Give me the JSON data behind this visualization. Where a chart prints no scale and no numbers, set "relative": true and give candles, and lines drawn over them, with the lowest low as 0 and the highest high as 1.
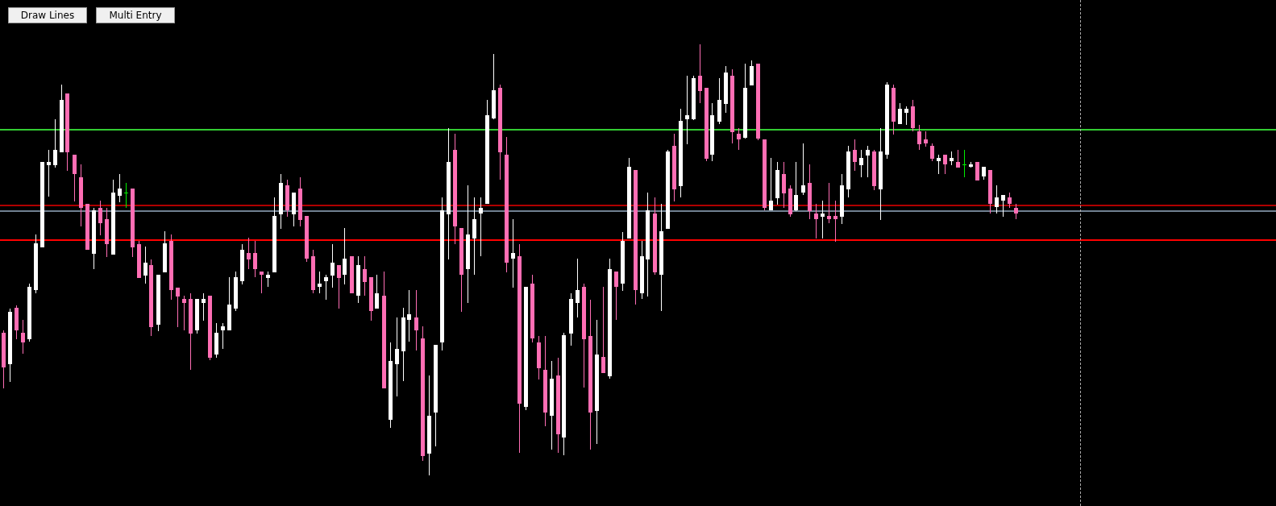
{
  "chart_data": {
    "type": "candlestick",
    "relative": true,
    "tick_labels": false,
    "annotations": [
      "Draw Lines",
      "Multi Entry"
    ],
    "ref_lines": [
      {
        "axis": "y",
        "value": 0.802,
        "color": "#33cc33"
      },
      {
        "axis": "y",
        "value": 0.626,
        "color": "#b00000"
      },
      {
        "axis": "y",
        "value": 0.613,
        "color": "#708090"
      },
      {
        "axis": "y",
        "value": 0.546,
        "color": "#ff0000"
      }
    ],
    "categories": [
      null,
      null,
      null,
      null,
      null,
      null,
      null,
      null,
      null,
      null,
      null,
      null,
      null,
      null,
      null,
      null,
      null,
      null,
      null,
      null,
      null,
      null,
      null,
      null,
      null,
      null,
      null,
      null,
      null,
      null,
      null,
      null,
      null,
      null,
      null,
      null,
      null,
      null,
      null,
      null,
      null,
      null,
      null,
      null,
      null,
      null,
      null,
      null,
      null,
      null,
      null,
      null,
      null,
      null,
      null,
      null,
      null,
      null,
      null,
      null,
      null,
      null,
      null,
      null,
      null,
      null,
      null,
      null,
      null,
      null,
      null,
      null,
      null,
      null,
      null,
      null,
      null,
      null,
      null,
      null,
      null,
      null,
      null,
      null,
      null,
      null,
      null,
      null,
      null,
      null,
      null,
      null,
      null,
      null,
      null,
      null,
      null,
      null,
      null,
      null,
      null,
      null,
      null,
      null,
      null,
      null,
      null,
      null,
      null,
      null,
      null,
      null,
      null,
      null,
      null,
      null,
      null,
      null,
      null,
      null,
      null,
      null,
      null,
      null,
      null,
      null,
      null,
      null,
      null,
      null,
      null,
      null,
      null,
      null,
      null,
      null,
      null,
      null,
      null,
      null,
      null,
      null,
      null,
      null,
      null,
      null,
      null,
      null,
      null,
      null,
      null,
      null,
      null,
      null,
      null,
      null,
      null,
      null
    ],
    "colors": [
      "#ff6eb4",
      "#ffffff",
      "#ff6eb4",
      "#ff6eb4",
      "#ffffff",
      "#ffffff",
      "#ffffff",
      "#ffffff",
      "#ffffff",
      "#ffffff",
      "#ff6eb4",
      "#ff6eb4",
      "#ff6eb4",
      "#ff6eb4",
      "#ffffff",
      "#ff6eb4",
      "#ff6eb4",
      "#ffffff",
      "#ffffff",
      "#00ee00",
      "#ff6eb4",
      "#ff6eb4",
      "#ffffff",
      "#ff6eb4",
      "#ffffff",
      "#ffffff",
      "#ff6eb4",
      "#ff6eb4",
      "#ff6eb4",
      "#ff6eb4",
      "#ffffff",
      "#ffffff",
      "#ff6eb4",
      "#ffffff",
      "#ffffff",
      "#ffffff",
      "#ffffff",
      "#ffffff",
      "#ff6eb4",
      "#ff6eb4",
      "#ff6eb4",
      "#ffffff",
      "#ffffff",
      "#ffffff",
      "#ff6eb4",
      "#ffffff",
      "#ff6eb4",
      "#ff6eb4",
      "#ff6eb4",
      "#ffffff",
      "#ffffff",
      "#ffffff",
      "#ff6eb4",
      "#ffffff",
      "#ff6eb4",
      "#ffffff",
      "#ff6eb4",
      "#ff6eb4",
      "#ffffff",
      "#ff6eb4",
      "#ffffff",
      "#ffffff",
      "#ffffff",
      "#ffffff",
      "#ff6eb4",
      "#ff6eb4",
      "#ffffff",
      "#ffffff",
      "#ffffff",
      "#ffffff",
      "#ff6eb4",
      "#ff6eb4",
      "#ffffff",
      "#ffffff",
      "#ffffff",
      "#ffffff",
      "#ffffff",
      "#ff6eb4",
      "#ff6eb4",
      "#ffffff",
      "#ff6eb4",
      "#ffffff",
      "#ff6eb4",
      "#ff6eb4",
      "#ff6eb4",
      "#ffffff",
      "#ff6eb4",
      "#ffffff",
      "#ffffff",
      "#ffffff",
      "#ff6eb4",
      "#ff6eb4",
      "#ffffff",
      "#ff6eb4",
      "#ffffff",
      "#ff6eb4",
      "#ffffff",
      "#ffffff",
      "#ff6eb4",
      "#ffffff",
      "#ffffff",
      "#ff6eb4",
      "#ffffff",
      "#ffffff",
      "#ff6eb4",
      "#ffffff",
      "#ffffff",
      "#ffffff",
      "#ff6eb4",
      "#ff6eb4",
      "#ffffff",
      "#ffffff",
      "#ffffff",
      "#ff6eb4",
      "#ff6eb4",
      "#ffffff",
      "#ffffff",
      "#ff6eb4",
      "#ff6eb4",
      "#ffffff",
      "#ffffff",
      "#ff6eb4",
      "#ff6eb4",
      "#ffffff",
      "#ffffff",
      "#ff6eb4",
      "#ff6eb4",
      "#ffffff",
      "#ff6eb4",
      "#ff6eb4",
      "#ffffff",
      "#ffffff",
      "#ff6eb4",
      "#ffffff",
      "#ffffff",
      "#ff6eb4",
      "#ffffff",
      "#ffffff",
      "#ff6eb4",
      "#ffffff",
      "#ffffff",
      "#ff6eb4",
      "#ff6eb4",
      "#ff6eb4",
      "#ff6eb4",
      "#ffffff",
      "#ff6eb4",
      "#ffffff",
      "#ff6eb4",
      "#00ee00",
      "#ffffff",
      "#ff6eb4",
      "#ffffff",
      "#ff6eb4",
      "#ffffff",
      "#ffffff",
      "#ff6eb4",
      "#ff6eb4"
    ],
    "ohlc": [
      [
        0.33,
        0.336,
        0.202,
        0.25
      ],
      [
        0.258,
        0.387,
        0.217,
        0.38
      ],
      [
        0.388,
        0.395,
        0.317,
        0.336
      ],
      [
        0.33,
        0.36,
        0.281,
        0.308
      ],
      [
        0.316,
        0.444,
        0.309,
        0.437
      ],
      [
        0.429,
        0.559,
        0.423,
        0.538
      ],
      [
        0.529,
        0.728,
        0.529,
        0.728
      ],
      [
        0.72,
        0.756,
        0.648,
        0.728
      ],
      [
        0.72,
        0.827,
        0.715,
        0.756
      ],
      [
        0.75,
        0.906,
        0.75,
        0.871
      ],
      [
        0.886,
        0.886,
        0.707,
        0.75
      ],
      [
        0.744,
        0.744,
        0.635,
        0.7
      ],
      [
        0.692,
        0.721,
        0.578,
        0.621
      ],
      [
        0.629,
        0.629,
        0.522,
        0.522
      ],
      [
        0.514,
        0.621,
        0.479,
        0.615
      ],
      [
        0.621,
        0.637,
        0.557,
        0.585
      ],
      [
        0.594,
        0.621,
        0.507,
        0.536
      ],
      [
        0.514,
        0.686,
        0.514,
        0.657
      ],
      [
        0.648,
        0.7,
        0.635,
        0.665
      ],
      [
        0.657,
        0.679,
        0.621,
        0.657
      ],
      [
        0.665,
        0.665,
        0.507,
        0.529
      ],
      [
        0.536,
        0.543,
        0.458,
        0.458
      ],
      [
        0.465,
        0.53,
        0.444,
        0.494
      ],
      [
        0.487,
        0.501,
        0.324,
        0.344
      ],
      [
        0.351,
        0.466,
        0.336,
        0.466
      ],
      [
        0.471,
        0.566,
        0.471,
        0.538
      ],
      [
        0.543,
        0.559,
        0.408,
        0.429
      ],
      [
        0.436,
        0.436,
        0.344,
        0.416
      ],
      [
        0.409,
        0.416,
        0.336,
        0.4
      ],
      [
        0.409,
        0.423,
        0.245,
        0.329
      ],
      [
        0.336,
        0.409,
        0.329,
        0.409
      ],
      [
        0.4,
        0.423,
        0.359,
        0.409
      ],
      [
        0.416,
        0.416,
        0.266,
        0.273
      ],
      [
        0.28,
        0.353,
        0.273,
        0.33
      ],
      [
        0.336,
        0.353,
        0.294,
        0.345
      ],
      [
        0.336,
        0.459,
        0.336,
        0.396
      ],
      [
        0.387,
        0.472,
        0.38,
        0.459
      ],
      [
        0.45,
        0.537,
        0.444,
        0.523
      ],
      [
        0.516,
        0.551,
        0.479,
        0.501
      ],
      [
        0.516,
        0.543,
        0.458,
        0.479
      ],
      [
        0.472,
        0.472,
        0.422,
        0.465
      ],
      [
        0.458,
        0.472,
        0.436,
        0.466
      ],
      [
        0.471,
        0.644,
        0.471,
        0.601
      ],
      [
        0.607,
        0.7,
        0.572,
        0.679
      ],
      [
        0.672,
        0.686,
        0.6,
        0.614
      ],
      [
        0.607,
        0.657,
        0.578,
        0.657
      ],
      [
        0.665,
        0.692,
        0.578,
        0.592
      ],
      [
        0.601,
        0.601,
        0.494,
        0.501
      ],
      [
        0.508,
        0.523,
        0.422,
        0.429
      ],
      [
        0.436,
        0.472,
        0.422,
        0.444
      ],
      [
        0.45,
        0.466,
        0.408,
        0.459
      ],
      [
        0.465,
        0.537,
        0.436,
        0.494
      ],
      [
        0.487,
        0.487,
        0.387,
        0.458
      ],
      [
        0.465,
        0.574,
        0.444,
        0.502
      ],
      [
        0.508,
        0.508,
        0.422,
        0.422
      ],
      [
        0.416,
        0.508,
        0.4,
        0.487
      ],
      [
        0.479,
        0.508,
        0.416,
        0.45
      ],
      [
        0.459,
        0.459,
        0.359,
        0.38
      ],
      [
        0.387,
        0.466,
        0.387,
        0.423
      ],
      [
        0.416,
        0.472,
        0.201,
        0.201
      ],
      [
        0.13,
        0.309,
        0.111,
        0.266
      ],
      [
        0.258,
        0.366,
        0.182,
        0.294
      ],
      [
        0.288,
        0.388,
        0.217,
        0.366
      ],
      [
        0.359,
        0.429,
        0.309,
        0.373
      ],
      [
        0.366,
        0.429,
        0.288,
        0.336
      ],
      [
        0.317,
        0.345,
        0.032,
        0.044
      ],
      [
        0.052,
        0.231,
        0.0,
        0.139
      ],
      [
        0.145,
        0.302,
        0.067,
        0.302
      ],
      [
        0.308,
        0.644,
        0.288,
        0.615
      ],
      [
        0.607,
        0.806,
        0.501,
        0.728
      ],
      [
        0.756,
        0.792,
        0.536,
        0.578
      ],
      [
        0.574,
        0.574,
        0.38,
        0.465
      ],
      [
        0.479,
        0.672,
        0.4,
        0.559
      ],
      [
        0.549,
        0.644,
        0.465,
        0.594
      ],
      [
        0.607,
        0.644,
        0.507,
        0.621
      ],
      [
        0.629,
        0.871,
        0.629,
        0.835
      ],
      [
        0.827,
        0.978,
        0.827,
        0.893
      ],
      [
        0.899,
        0.906,
        0.685,
        0.75
      ],
      [
        0.744,
        0.785,
        0.471,
        0.494
      ],
      [
        0.501,
        0.594,
        0.436,
        0.515
      ],
      [
        0.508,
        0.536,
        0.052,
        0.166
      ],
      [
        0.159,
        0.437,
        0.151,
        0.437
      ],
      [
        0.444,
        0.466,
        0.309,
        0.316
      ],
      [
        0.309,
        0.324,
        0.223,
        0.25
      ],
      [
        0.245,
        0.324,
        0.115,
        0.146
      ],
      [
        0.138,
        0.266,
        0.06,
        0.224
      ],
      [
        0.231,
        0.273,
        0.052,
        0.095
      ],
      [
        0.088,
        0.33,
        0.045,
        0.325
      ],
      [
        0.329,
        0.423,
        0.302,
        0.409
      ],
      [
        0.4,
        0.502,
        0.366,
        0.429
      ],
      [
        0.437,
        0.444,
        0.202,
        0.316
      ],
      [
        0.324,
        0.408,
        0.06,
        0.146
      ],
      [
        0.151,
        0.36,
        0.073,
        0.281
      ],
      [
        0.274,
        0.437,
        0.237,
        0.237
      ],
      [
        0.23,
        0.502,
        0.223,
        0.479
      ],
      [
        0.472,
        0.472,
        0.359,
        0.436
      ],
      [
        0.444,
        0.565,
        0.429,
        0.543
      ],
      [
        0.549,
        0.736,
        0.549,
        0.715
      ],
      [
        0.708,
        0.708,
        0.395,
        0.429
      ],
      [
        0.422,
        0.543,
        0.408,
        0.508
      ],
      [
        0.501,
        0.657,
        0.416,
        0.615
      ],
      [
        0.607,
        0.644,
        0.465,
        0.471
      ],
      [
        0.465,
        0.629,
        0.38,
        0.566
      ],
      [
        0.572,
        0.756,
        0.572,
        0.751
      ],
      [
        0.764,
        0.792,
        0.635,
        0.663
      ],
      [
        0.671,
        0.85,
        0.644,
        0.822
      ],
      [
        0.826,
        0.928,
        0.77,
        0.835
      ],
      [
        0.826,
        0.928,
        0.826,
        0.921
      ],
      [
        0.928,
        1.0,
        0.863,
        0.892
      ],
      [
        0.899,
        0.899,
        0.728,
        0.735
      ],
      [
        0.743,
        0.863,
        0.728,
        0.835
      ],
      [
        0.821,
        0.921,
        0.814,
        0.871
      ],
      [
        0.862,
        0.949,
        0.841,
        0.934
      ],
      [
        0.928,
        0.942,
        0.77,
        0.798
      ],
      [
        0.792,
        0.806,
        0.756,
        0.778
      ],
      [
        0.783,
        0.956,
        0.783,
        0.899
      ],
      [
        0.905,
        0.962,
        0.905,
        0.949
      ],
      [
        0.956,
        0.956,
        0.778,
        0.783
      ],
      [
        0.779,
        0.779,
        0.614,
        0.621
      ],
      [
        0.614,
        0.736,
        0.614,
        0.637
      ],
      [
        0.643,
        0.728,
        0.629,
        0.708
      ],
      [
        0.7,
        0.728,
        0.621,
        0.656
      ],
      [
        0.665,
        0.672,
        0.6,
        0.606
      ],
      [
        0.614,
        0.728,
        0.614,
        0.65
      ],
      [
        0.656,
        0.77,
        0.65,
        0.672
      ],
      [
        0.679,
        0.721,
        0.593,
        0.614
      ],
      [
        0.607,
        0.629,
        0.549,
        0.593
      ],
      [
        0.6,
        0.637,
        0.549,
        0.607
      ],
      [
        0.601,
        0.679,
        0.585,
        0.593
      ],
      [
        0.601,
        0.637,
        0.542,
        0.593
      ],
      [
        0.6,
        0.7,
        0.585,
        0.672
      ],
      [
        0.663,
        0.764,
        0.644,
        0.751
      ],
      [
        0.756,
        0.779,
        0.707,
        0.728
      ],
      [
        0.72,
        0.756,
        0.692,
        0.736
      ],
      [
        0.743,
        0.764,
        0.692,
        0.756
      ],
      [
        0.751,
        0.756,
        0.663,
        0.671
      ],
      [
        0.663,
        0.806,
        0.593,
        0.751
      ],
      [
        0.743,
        0.913,
        0.735,
        0.906
      ],
      [
        0.899,
        0.906,
        0.791,
        0.821
      ],
      [
        0.814,
        0.863,
        0.814,
        0.85
      ],
      [
        0.841,
        0.857,
        0.814,
        0.85
      ],
      [
        0.857,
        0.871,
        0.799,
        0.806
      ],
      [
        0.799,
        0.814,
        0.756,
        0.77
      ],
      [
        0.779,
        0.799,
        0.763,
        0.77
      ],
      [
        0.764,
        0.77,
        0.728,
        0.735
      ],
      [
        0.728,
        0.743,
        0.699,
        0.736
      ],
      [
        0.743,
        0.743,
        0.699,
        0.72
      ],
      [
        0.728,
        0.751,
        0.72,
        0.736
      ],
      [
        0.728,
        0.756,
        0.715,
        0.715
      ],
      [
        0.721,
        0.756,
        0.692,
        0.721
      ],
      [
        0.715,
        0.728,
        0.715,
        0.721
      ],
      [
        0.728,
        0.728,
        0.685,
        0.685
      ],
      [
        0.692,
        0.715,
        0.685,
        0.715
      ],
      [
        0.708,
        0.708,
        0.607,
        0.629
      ],
      [
        0.621,
        0.672,
        0.607,
        0.644
      ],
      [
        0.637,
        0.65,
        0.6,
        0.65
      ],
      [
        0.644,
        0.657,
        0.621,
        0.629
      ],
      [
        0.621,
        0.629,
        0.593,
        0.607
      ]
    ]
  }
}
